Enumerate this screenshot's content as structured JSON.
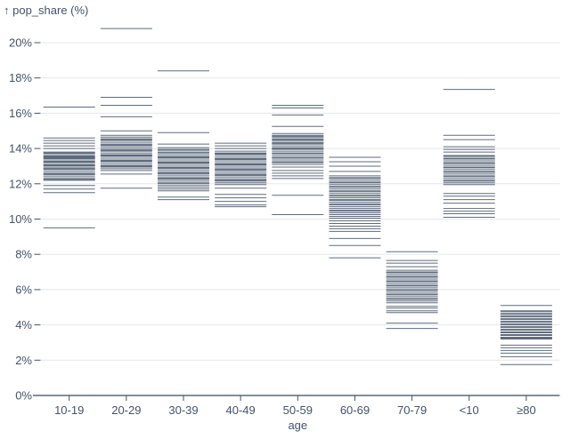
{
  "chart": {
    "y_title": "↑ pop_share (%)",
    "x_label": "age"
  },
  "colors": {
    "tick": "#3a4a60",
    "axis": "#3b4a5f",
    "text": "#44536a",
    "grid": "#e5e7ea",
    "background": "#ffffff"
  },
  "chart_data": {
    "type": "tick",
    "title": "",
    "xlabel": "age",
    "ylabel": "pop_share (%)",
    "ylim": [
      0,
      21
    ],
    "grid": true,
    "y_tick_step": 2,
    "y_tick_labels": [
      "0%",
      "2%",
      "4%",
      "6%",
      "8%",
      "10%",
      "12%",
      "14%",
      "16%",
      "18%",
      "20%"
    ],
    "categories": [
      "10-19",
      "20-29",
      "30-39",
      "40-49",
      "50-59",
      "60-69",
      "70-79",
      "<10",
      "≥80"
    ],
    "series": [
      {
        "name": "10-19",
        "values": [
          16.35,
          14.6,
          14.45,
          14.3,
          14.15,
          14.0,
          13.8,
          13.75,
          13.7,
          13.6,
          13.55,
          13.5,
          13.45,
          13.4,
          13.3,
          13.25,
          13.2,
          13.1,
          13.05,
          13.0,
          12.9,
          12.85,
          12.8,
          12.7,
          12.6,
          12.55,
          12.5,
          12.4,
          12.3,
          12.25,
          12.2,
          11.9,
          11.7,
          11.5,
          9.5
        ]
      },
      {
        "name": "20-29",
        "values": [
          20.8,
          16.9,
          16.45,
          15.8,
          15.0,
          14.75,
          14.65,
          14.55,
          14.5,
          14.45,
          14.35,
          14.25,
          14.2,
          14.15,
          14.05,
          13.95,
          13.9,
          13.85,
          13.75,
          13.65,
          13.6,
          13.55,
          13.45,
          13.35,
          13.3,
          13.25,
          13.15,
          13.05,
          13.0,
          12.95,
          12.85,
          12.75,
          12.55,
          11.75
        ]
      },
      {
        "name": "30-39",
        "values": [
          18.4,
          14.9,
          14.25,
          14.05,
          13.95,
          13.9,
          13.8,
          13.75,
          13.65,
          13.55,
          13.5,
          13.45,
          13.35,
          13.25,
          13.2,
          13.15,
          13.05,
          12.95,
          12.9,
          12.85,
          12.75,
          12.65,
          12.6,
          12.55,
          12.45,
          12.35,
          12.3,
          12.25,
          12.15,
          12.05,
          12.0,
          11.9,
          11.8,
          11.7,
          11.6,
          11.25,
          11.1
        ]
      },
      {
        "name": "40-49",
        "values": [
          14.3,
          14.15,
          14.0,
          13.85,
          13.75,
          13.7,
          13.65,
          13.55,
          13.45,
          13.4,
          13.35,
          13.25,
          13.15,
          13.1,
          13.05,
          12.95,
          12.85,
          12.8,
          12.75,
          12.65,
          12.55,
          12.5,
          12.45,
          12.35,
          12.25,
          12.2,
          12.15,
          12.05,
          11.95,
          11.75,
          11.4,
          11.2,
          11.0,
          10.8,
          10.7
        ]
      },
      {
        "name": "50-59",
        "values": [
          16.45,
          16.3,
          15.9,
          15.25,
          14.85,
          14.75,
          14.7,
          14.65,
          14.55,
          14.5,
          14.45,
          14.35,
          14.3,
          14.25,
          14.15,
          14.05,
          14.0,
          13.95,
          13.85,
          13.75,
          13.7,
          13.6,
          13.5,
          13.45,
          13.35,
          13.25,
          13.2,
          13.1,
          12.95,
          12.75,
          12.6,
          12.45,
          12.3,
          11.35,
          10.25
        ]
      },
      {
        "name": "60-69",
        "values": [
          13.5,
          13.25,
          13.0,
          12.7,
          12.45,
          12.35,
          12.3,
          12.2,
          12.1,
          12.05,
          11.95,
          11.85,
          11.8,
          11.7,
          11.6,
          11.55,
          11.45,
          11.35,
          11.3,
          11.2,
          11.1,
          11.05,
          10.95,
          10.85,
          10.8,
          10.7,
          10.6,
          10.5,
          10.45,
          10.35,
          10.25,
          10.15,
          10.05,
          9.9,
          9.75,
          9.6,
          9.45,
          9.3,
          8.9,
          8.5,
          7.8
        ]
      },
      {
        "name": "70-79",
        "values": [
          8.15,
          7.65,
          7.5,
          7.3,
          7.1,
          7.0,
          6.95,
          6.85,
          6.75,
          6.7,
          6.6,
          6.5,
          6.45,
          6.35,
          6.25,
          6.2,
          6.1,
          6.0,
          5.95,
          5.85,
          5.75,
          5.7,
          5.6,
          5.5,
          5.45,
          5.35,
          5.25,
          5.05,
          4.95,
          4.8,
          4.7,
          4.1,
          3.8
        ]
      },
      {
        "name": "<10",
        "values": [
          17.35,
          14.75,
          14.5,
          14.1,
          13.95,
          13.8,
          13.6,
          13.55,
          13.45,
          13.4,
          13.3,
          13.2,
          13.15,
          13.05,
          12.95,
          12.9,
          12.8,
          12.7,
          12.65,
          12.55,
          12.45,
          12.4,
          12.3,
          12.2,
          12.15,
          12.05,
          11.95,
          11.45,
          11.3,
          11.1,
          10.9,
          10.6,
          10.45,
          10.3,
          10.1
        ]
      },
      {
        "name": "≥80",
        "values": [
          5.1,
          4.8,
          4.75,
          4.65,
          4.6,
          4.5,
          4.45,
          4.35,
          4.3,
          4.2,
          4.15,
          4.05,
          4.0,
          3.9,
          3.85,
          3.75,
          3.7,
          3.6,
          3.55,
          3.45,
          3.4,
          3.3,
          3.25,
          3.2,
          2.85,
          2.7,
          2.55,
          2.4,
          2.2,
          1.75
        ]
      }
    ],
    "legend": null
  }
}
